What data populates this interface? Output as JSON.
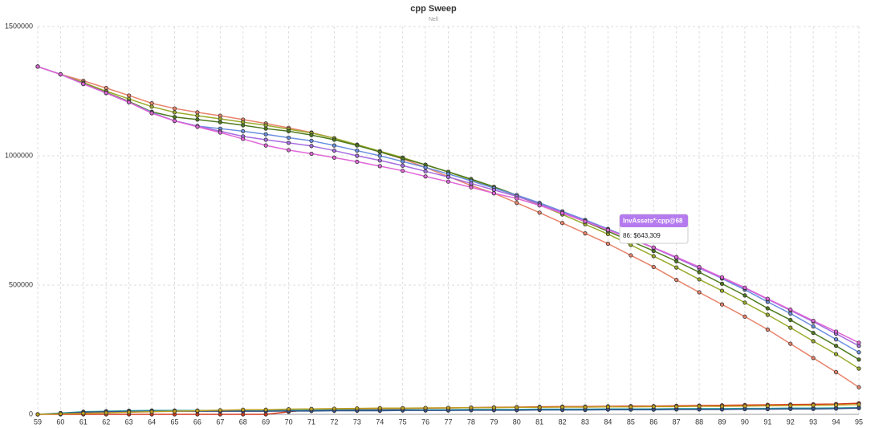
{
  "chart_data": {
    "type": "line",
    "title": "cpp Sweep",
    "subtitle": "Nell",
    "x": [
      59,
      60,
      61,
      62,
      63,
      64,
      65,
      66,
      67,
      68,
      69,
      70,
      71,
      72,
      73,
      74,
      75,
      76,
      77,
      78,
      79,
      80,
      81,
      82,
      83,
      84,
      85,
      86,
      87,
      88,
      89,
      90,
      91,
      92,
      93,
      94,
      95
    ],
    "xlim": [
      59,
      95
    ],
    "xticks": [
      59,
      60,
      61,
      62,
      63,
      64,
      65,
      66,
      67,
      68,
      69,
      70,
      71,
      72,
      73,
      74,
      75,
      76,
      77,
      78,
      79,
      80,
      81,
      82,
      83,
      84,
      85,
      86,
      87,
      88,
      89,
      90,
      91,
      92,
      93,
      94,
      95
    ],
    "ylim": [
      0,
      1500000
    ],
    "yticks": [
      0,
      500000,
      1000000,
      1500000
    ],
    "grid": true,
    "series": [
      {
        "color": "#d63a1e",
        "values": [
          0,
          0,
          0,
          0,
          0,
          0,
          0,
          0,
          0,
          0,
          0,
          10000,
          18000,
          20000,
          21000,
          22000,
          23000,
          24000,
          25000,
          26000,
          27000,
          28000,
          29000,
          30000,
          30000,
          31000,
          32000,
          32000,
          33000,
          34000,
          35000,
          36000,
          37000,
          38000,
          39000,
          40000,
          43000
        ]
      },
      {
        "color": "#2aa4a4",
        "values": [
          0,
          5000,
          10000,
          12000,
          14000,
          15000,
          15000,
          15000,
          15000,
          15000,
          15000,
          16000,
          16000,
          17000,
          17000,
          17000,
          18000,
          18000,
          18000,
          19000,
          19000,
          19000,
          20000,
          20000,
          20000,
          21000,
          21000,
          21000,
          22000,
          22000,
          22000,
          23000,
          23000,
          24000,
          24000,
          25000,
          26000
        ]
      },
      {
        "color": "#34508a",
        "values": [
          0,
          3000,
          8000,
          10000,
          11000,
          12000,
          12000,
          12000,
          12000,
          12000,
          12000,
          13000,
          13000,
          14000,
          14000,
          14000,
          15000,
          15000,
          15000,
          16000,
          16000,
          16000,
          17000,
          17000,
          17000,
          18000,
          18000,
          18000,
          19000,
          19000,
          19000,
          20000,
          20000,
          21000,
          21000,
          22000,
          24000
        ]
      },
      {
        "color": "#c0a020",
        "values": [
          0,
          2000,
          4000,
          6000,
          8000,
          10000,
          12000,
          14000,
          16000,
          18000,
          18000,
          20000,
          21000,
          22000,
          23000,
          24000,
          24000,
          25000,
          25000,
          26000,
          26000,
          27000,
          27000,
          28000,
          28000,
          29000,
          29000,
          30000,
          30000,
          31000,
          31000,
          32000,
          33000,
          34000,
          35000,
          36000,
          38000
        ]
      },
      {
        "color": "#e8836b",
        "values": [
          1345000,
          1315000,
          1290000,
          1262000,
          1233000,
          1203000,
          1183000,
          1168000,
          1155000,
          1140000,
          1125000,
          1108000,
          1090000,
          1068000,
          1042000,
          1015000,
          988000,
          955000,
          920000,
          885000,
          855000,
          818000,
          780000,
          740000,
          700000,
          660000,
          615000,
          570000,
          520000,
          472000,
          425000,
          378000,
          328000,
          273000,
          218000,
          163000,
          105000
        ]
      },
      {
        "color": "#9aab2b",
        "values": [
          1345000,
          1315000,
          1283000,
          1250000,
          1220000,
          1190000,
          1168000,
          1155000,
          1143000,
          1130000,
          1118000,
          1103000,
          1088000,
          1068000,
          1043000,
          1018000,
          993000,
          965000,
          937000,
          907000,
          877000,
          845000,
          810000,
          773000,
          735000,
          697000,
          655000,
          612000,
          568000,
          522000,
          478000,
          432000,
          385000,
          335000,
          283000,
          233000,
          177000
        ]
      },
      {
        "color": "#4e7a1e",
        "values": [
          1345000,
          1315000,
          1280000,
          1245000,
          1210000,
          1170000,
          1150000,
          1140000,
          1130000,
          1118000,
          1105000,
          1095000,
          1080000,
          1062000,
          1040000,
          1015000,
          990000,
          965000,
          938000,
          910000,
          880000,
          848000,
          815000,
          780000,
          745000,
          708000,
          670000,
          632000,
          592000,
          550000,
          505000,
          460000,
          410000,
          365000,
          315000,
          265000,
          212000
        ]
      },
      {
        "color": "#6a8fe0",
        "values": [
          1345000,
          1315000,
          1278000,
          1243000,
          1207000,
          1168000,
          1135000,
          1115000,
          1105000,
          1095000,
          1083000,
          1070000,
          1058000,
          1040000,
          1020000,
          1000000,
          978000,
          955000,
          930000,
          903000,
          875000,
          848000,
          818000,
          785000,
          752000,
          717000,
          682000,
          645000,
          608000,
          568000,
          525000,
          482000,
          435000,
          390000,
          340000,
          290000,
          240000
        ]
      },
      {
        "color": "#a66de0",
        "values": [
          1345000,
          1315000,
          1278000,
          1243000,
          1207000,
          1165000,
          1135000,
          1115000,
          1095000,
          1075000,
          1062000,
          1050000,
          1038000,
          1020000,
          1000000,
          982000,
          962000,
          940000,
          918000,
          893000,
          868000,
          843000,
          813000,
          782000,
          748000,
          715000,
          680000,
          643309,
          605000,
          565000,
          527000,
          488000,
          445000,
          402000,
          358000,
          312000,
          265000
        ]
      },
      {
        "color": "#e066d8",
        "values": [
          1345000,
          1315000,
          1278000,
          1243000,
          1207000,
          1165000,
          1135000,
          1112000,
          1090000,
          1065000,
          1040000,
          1022000,
          1008000,
          993000,
          977000,
          960000,
          942000,
          920000,
          900000,
          878000,
          855000,
          835000,
          808000,
          778000,
          746000,
          713000,
          680000,
          645000,
          608000,
          570000,
          530000,
          490000,
          447000,
          405000,
          362000,
          320000,
          277000
        ]
      }
    ],
    "tooltip": {
      "title": "InvAssets*:cpp@68",
      "text": "86: $643,309"
    }
  }
}
